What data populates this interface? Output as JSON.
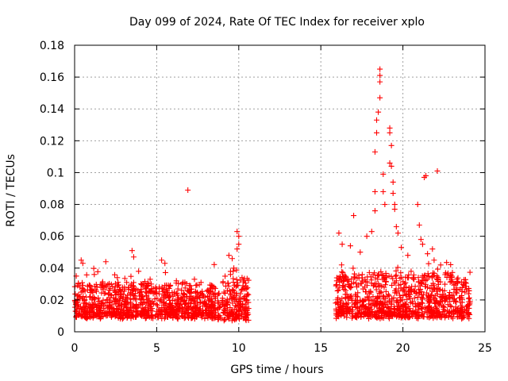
{
  "chart_data": {
    "type": "scatter",
    "title": "Day 099 of 2024, Rate Of TEC Index for receiver xplo",
    "xlabel": "GPS time / hours",
    "ylabel": "ROTI / TECUs",
    "xlim": [
      0,
      25
    ],
    "ylim": [
      0,
      0.18
    ],
    "x_ticks": [
      0,
      5,
      10,
      15,
      20,
      25
    ],
    "x_tick_labels": [
      "0",
      "5",
      "10",
      "15",
      "20",
      "25"
    ],
    "y_ticks": [
      0,
      0.02,
      0.04,
      0.06,
      0.08,
      0.1,
      0.12,
      0.14,
      0.16,
      0.18
    ],
    "y_tick_labels": [
      "0",
      "0.02",
      "0.04",
      "0.06",
      "0.08",
      "0.1",
      "0.12",
      "0.14",
      "0.16",
      "0.18"
    ],
    "grid": true,
    "marker": "+",
    "color": "#ff0000",
    "series": [
      {
        "name": "ROTI",
        "segments": [
          {
            "x_start": 0.0,
            "x_end": 8.6,
            "baseline_low": 0.008,
            "baseline_high": 0.025
          },
          {
            "x_start": 8.7,
            "x_end": 10.6,
            "baseline_low": 0.007,
            "baseline_high": 0.028
          },
          {
            "x_start": 15.9,
            "x_end": 24.1,
            "baseline_low": 0.008,
            "baseline_high": 0.03
          }
        ],
        "notable_points": [
          {
            "x": 0.1,
            "y": 0.035
          },
          {
            "x": 0.4,
            "y": 0.045
          },
          {
            "x": 0.5,
            "y": 0.043
          },
          {
            "x": 1.2,
            "y": 0.036
          },
          {
            "x": 1.9,
            "y": 0.044
          },
          {
            "x": 2.6,
            "y": 0.034
          },
          {
            "x": 3.5,
            "y": 0.051
          },
          {
            "x": 3.6,
            "y": 0.047
          },
          {
            "x": 3.9,
            "y": 0.038
          },
          {
            "x": 4.6,
            "y": 0.033
          },
          {
            "x": 5.3,
            "y": 0.045
          },
          {
            "x": 5.5,
            "y": 0.043
          },
          {
            "x": 6.2,
            "y": 0.032
          },
          {
            "x": 6.6,
            "y": 0.031
          },
          {
            "x": 6.9,
            "y": 0.089
          },
          {
            "x": 7.3,
            "y": 0.033
          },
          {
            "x": 7.7,
            "y": 0.031
          },
          {
            "x": 8.5,
            "y": 0.028
          },
          {
            "x": 9.4,
            "y": 0.048
          },
          {
            "x": 9.6,
            "y": 0.046
          },
          {
            "x": 9.7,
            "y": 0.04
          },
          {
            "x": 9.9,
            "y": 0.063
          },
          {
            "x": 10.0,
            "y": 0.06
          },
          {
            "x": 10.0,
            "y": 0.055
          },
          {
            "x": 9.9,
            "y": 0.052
          },
          {
            "x": 9.5,
            "y": 0.036
          },
          {
            "x": 10.2,
            "y": 0.034
          },
          {
            "x": 16.1,
            "y": 0.062
          },
          {
            "x": 16.3,
            "y": 0.055
          },
          {
            "x": 16.8,
            "y": 0.054
          },
          {
            "x": 17.0,
            "y": 0.073
          },
          {
            "x": 17.4,
            "y": 0.05
          },
          {
            "x": 17.8,
            "y": 0.06
          },
          {
            "x": 18.1,
            "y": 0.063
          },
          {
            "x": 18.3,
            "y": 0.088
          },
          {
            "x": 18.3,
            "y": 0.076
          },
          {
            "x": 18.3,
            "y": 0.113
          },
          {
            "x": 18.4,
            "y": 0.125
          },
          {
            "x": 18.4,
            "y": 0.133
          },
          {
            "x": 18.5,
            "y": 0.138
          },
          {
            "x": 18.6,
            "y": 0.147
          },
          {
            "x": 18.6,
            "y": 0.157
          },
          {
            "x": 18.6,
            "y": 0.161
          },
          {
            "x": 18.6,
            "y": 0.165
          },
          {
            "x": 18.8,
            "y": 0.099
          },
          {
            "x": 18.8,
            "y": 0.088
          },
          {
            "x": 18.9,
            "y": 0.08
          },
          {
            "x": 19.2,
            "y": 0.128
          },
          {
            "x": 19.2,
            "y": 0.125
          },
          {
            "x": 19.3,
            "y": 0.117
          },
          {
            "x": 19.2,
            "y": 0.106
          },
          {
            "x": 19.3,
            "y": 0.104
          },
          {
            "x": 19.4,
            "y": 0.094
          },
          {
            "x": 19.4,
            "y": 0.087
          },
          {
            "x": 19.5,
            "y": 0.08
          },
          {
            "x": 19.5,
            "y": 0.077
          },
          {
            "x": 19.6,
            "y": 0.066
          },
          {
            "x": 19.7,
            "y": 0.062
          },
          {
            "x": 19.9,
            "y": 0.053
          },
          {
            "x": 20.3,
            "y": 0.048
          },
          {
            "x": 20.5,
            "y": 0.038
          },
          {
            "x": 20.9,
            "y": 0.08
          },
          {
            "x": 21.0,
            "y": 0.067
          },
          {
            "x": 21.1,
            "y": 0.058
          },
          {
            "x": 21.2,
            "y": 0.055
          },
          {
            "x": 21.3,
            "y": 0.097
          },
          {
            "x": 21.4,
            "y": 0.098
          },
          {
            "x": 21.5,
            "y": 0.049
          },
          {
            "x": 21.8,
            "y": 0.052
          },
          {
            "x": 21.9,
            "y": 0.045
          },
          {
            "x": 22.1,
            "y": 0.101
          },
          {
            "x": 22.3,
            "y": 0.042
          },
          {
            "x": 22.6,
            "y": 0.037
          },
          {
            "x": 22.9,
            "y": 0.035
          },
          {
            "x": 23.3,
            "y": 0.033
          },
          {
            "x": 23.8,
            "y": 0.031
          }
        ]
      }
    ]
  }
}
